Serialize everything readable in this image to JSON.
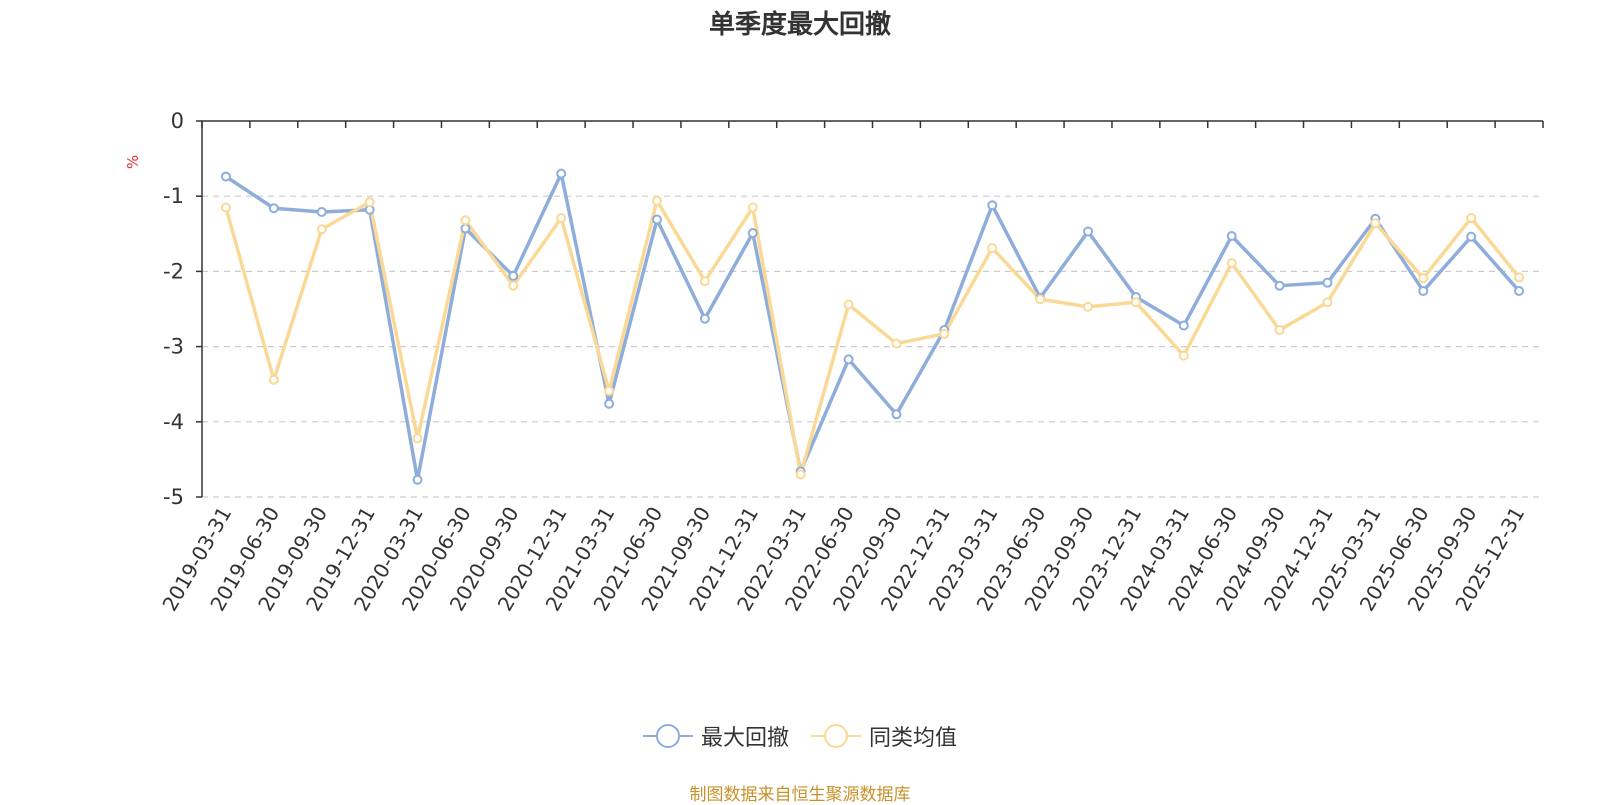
{
  "chart_data": {
    "type": "line",
    "title": "单季度最大回撤",
    "ylabel": "%",
    "ylim": [
      -5,
      0
    ],
    "yticks": [
      0,
      -1,
      -2,
      -3,
      -4,
      -5
    ],
    "grid": true,
    "legend_position": "bottom",
    "categories": [
      "2019-03-31",
      "2019-06-30",
      "2019-09-30",
      "2019-12-31",
      "2020-03-31",
      "2020-06-30",
      "2020-09-30",
      "2020-12-31",
      "2021-03-31",
      "2021-06-30",
      "2021-09-30",
      "2021-12-31",
      "2022-03-31",
      "2022-06-30",
      "2022-09-30",
      "2022-12-31",
      "2023-03-31",
      "2023-06-30",
      "2023-09-30",
      "2023-12-31",
      "2024-03-31",
      "2024-06-30",
      "2024-09-30",
      "2024-12-31",
      "2025-03-31",
      "2025-06-30",
      "2025-09-30",
      "2025-12-31"
    ],
    "series": [
      {
        "name": "最大回撤",
        "color": "#8eadda",
        "values": [
          -0.74,
          -1.16,
          -1.21,
          -1.18,
          -4.77,
          -1.43,
          -2.06,
          -0.7,
          -3.76,
          -1.31,
          -2.63,
          -1.49,
          -4.66,
          -3.17,
          -3.9,
          -2.78,
          -1.12,
          -2.35,
          -1.47,
          -2.34,
          -2.72,
          -1.53,
          -2.19,
          -2.15,
          -1.3,
          -2.26,
          -1.54,
          -2.26
        ]
      },
      {
        "name": "同类均值",
        "color": "#fad996",
        "values": [
          -1.15,
          -3.44,
          -1.44,
          -1.08,
          -4.22,
          -1.32,
          -2.19,
          -1.29,
          -3.59,
          -1.06,
          -2.13,
          -1.15,
          -4.7,
          -2.44,
          -2.96,
          -2.83,
          -1.69,
          -2.37,
          -2.47,
          -2.41,
          -3.12,
          -1.89,
          -2.78,
          -2.41,
          -1.36,
          -2.09,
          -1.29,
          -2.08
        ]
      }
    ]
  },
  "source_note": "制图数据来自恒生聚源数据库"
}
